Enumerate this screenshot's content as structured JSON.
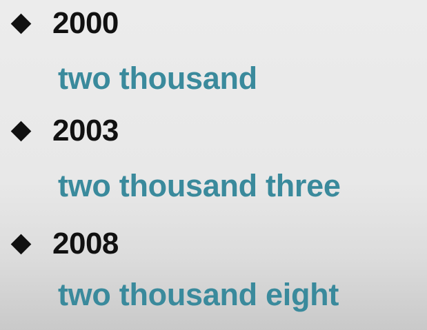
{
  "accent_color": "#3a8a9c",
  "bullet_icon": "diamond-bullet-icon",
  "items": [
    {
      "year": "2000",
      "words": "two thousand"
    },
    {
      "year": "2003",
      "words": "two thousand three"
    },
    {
      "year": "2008",
      "words": "two thousand eight"
    }
  ]
}
